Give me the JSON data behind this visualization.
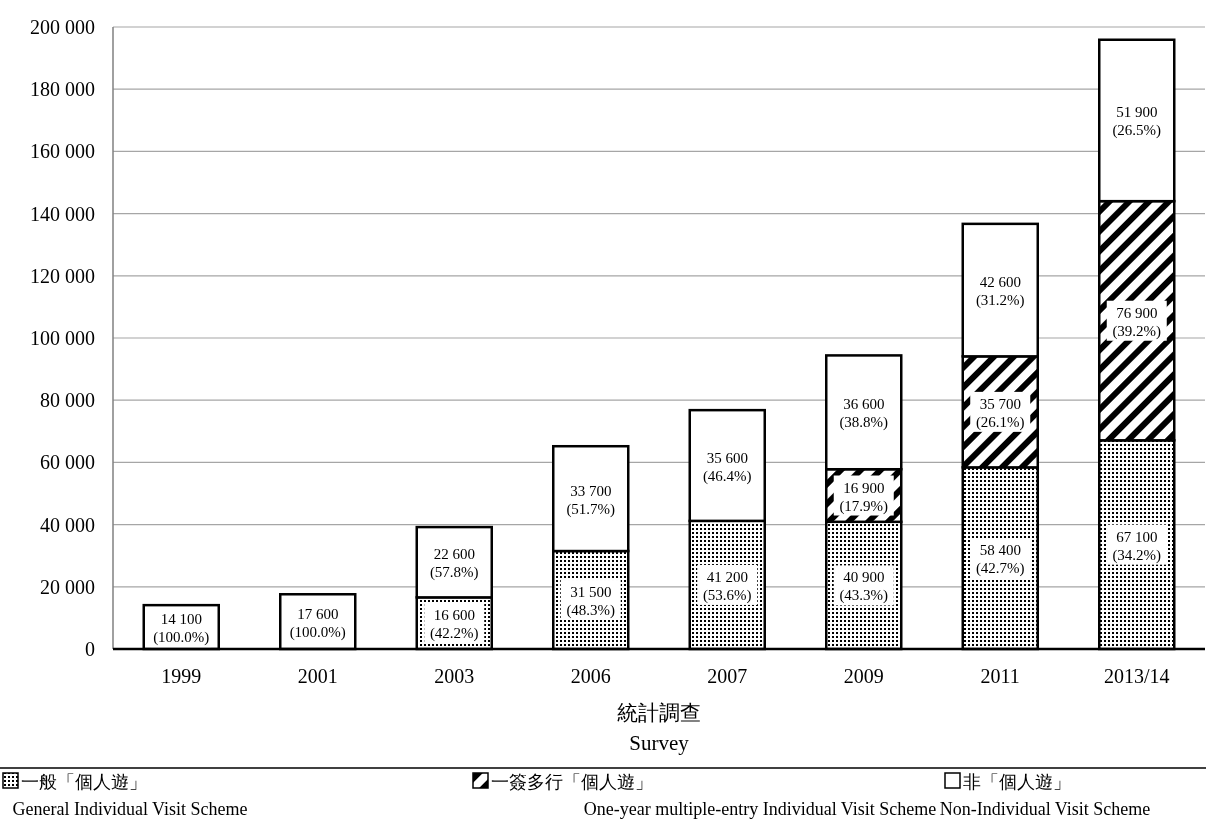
{
  "chart_data": {
    "type": "bar",
    "stacked": true,
    "xlabel": "統計調查\nSurvey",
    "categories": [
      "1999",
      "2001",
      "2003",
      "2006",
      "2007",
      "2009",
      "2011",
      "2013/14"
    ],
    "series": [
      {
        "name": "一般「個人遊」\nGeneral Individual Visit Scheme",
        "color": "#000000",
        "values": [
          null,
          null,
          16600,
          31500,
          41200,
          40900,
          58400,
          67100
        ],
        "value_labels": [
          null,
          null,
          "16 600 (42.2%)",
          "31 500 (48.3%)",
          "41 200 (53.6%)",
          "40 900 (43.3%)",
          "58 400 (42.7%)",
          "67 100 (34.2%)"
        ]
      },
      {
        "name": "一簽多行「個人遊」\nOne-year  multiple-entry Individual Visit Scheme",
        "color": "#000000",
        "values": [
          null,
          null,
          null,
          null,
          null,
          16900,
          35700,
          76900
        ],
        "value_labels": [
          null,
          null,
          null,
          null,
          null,
          "16 900 (17.9%)",
          "35 700 (26.1%)",
          "76 900 (39.2%)"
        ]
      },
      {
        "name": "非「個人遊」\nNon-Individual Visit Scheme",
        "color": "#ffffff",
        "values": [
          14100,
          17600,
          22600,
          33700,
          35600,
          36600,
          42600,
          51900
        ],
        "value_labels": [
          "14 100 (100.0%)",
          "17 600 (100.0%)",
          "22 600 (57.8%)",
          "33 700 (51.7%)",
          "35 600 (46.4%)",
          "36 600 (38.8%)",
          "42 600 (31.2%)",
          "51 900 (26.5%)"
        ]
      }
    ],
    "ylim": [
      0,
      200000
    ],
    "yticks": [
      {
        "value": 0,
        "label": "0"
      },
      {
        "value": 20000,
        "label": "20 000"
      },
      {
        "value": 40000,
        "label": "40 000"
      },
      {
        "value": 60000,
        "label": "60 000"
      },
      {
        "value": 80000,
        "label": "80 000"
      },
      {
        "value": 100000,
        "label": "100 000"
      },
      {
        "value": 120000,
        "label": "120 000"
      },
      {
        "value": 140000,
        "label": "140 000"
      },
      {
        "value": 160000,
        "label": "160 000"
      },
      {
        "value": 180000,
        "label": "180 000"
      },
      {
        "value": 200000,
        "label": "200 000"
      }
    ],
    "grid": "y",
    "legend": "bottom"
  }
}
